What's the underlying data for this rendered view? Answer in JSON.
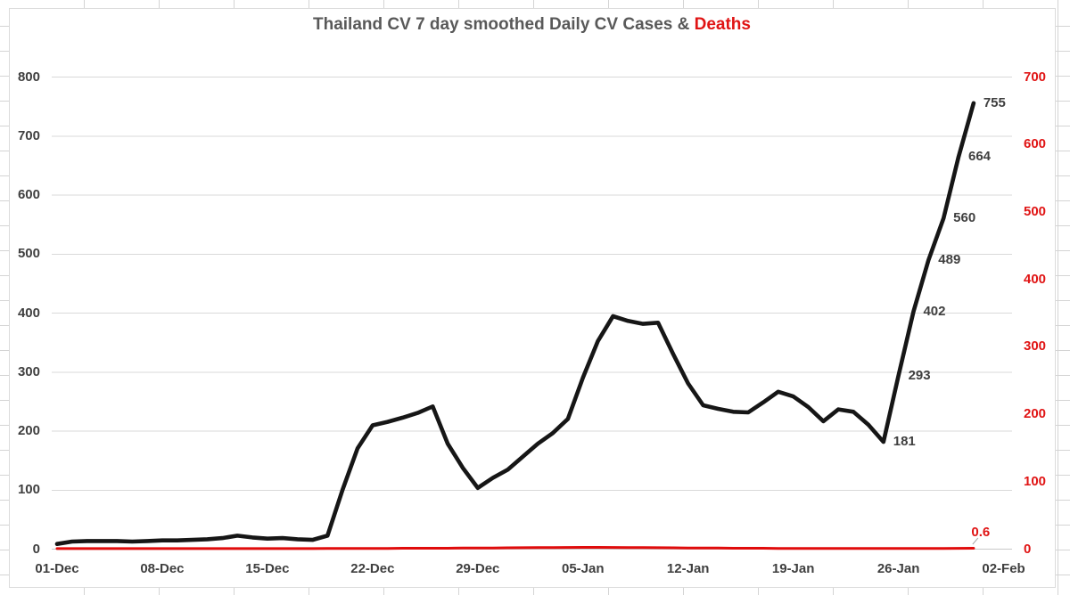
{
  "title": {
    "main": "Thailand CV 7 day smoothed Daily CV Cases & ",
    "highlight": "Deaths"
  },
  "chart_data": {
    "type": "line",
    "title": "Thailand CV 7 day smoothed Daily CV Cases & Deaths",
    "x_axis": {
      "tick_labels": [
        "01-Dec",
        "08-Dec",
        "15-Dec",
        "22-Dec",
        "29-Dec",
        "05-Jan",
        "12-Jan",
        "19-Jan",
        "26-Jan",
        "02-Feb"
      ],
      "points": "daily from 01-Dec to 31-Jan"
    },
    "left_axis": {
      "min": 0,
      "max": 800,
      "step": 100,
      "label_color": "#3f3f3f",
      "applies_to": "cases"
    },
    "right_axis": {
      "min": 0,
      "max": 700,
      "step": 100,
      "label_color": "#e01414",
      "applies_to": "deaths"
    },
    "grid": {
      "horizontal": true,
      "color": "#d9d9d9",
      "legend": "none"
    },
    "series": [
      {
        "name": "Daily CV Cases (7-day smoothed)",
        "axis": "left",
        "color": "#161616",
        "values": [
          8,
          12,
          13,
          13,
          13,
          12,
          13,
          14,
          14,
          15,
          16,
          18,
          22,
          19,
          17,
          18,
          16,
          15,
          22,
          100,
          170,
          209,
          215,
          222,
          230,
          241,
          178,
          137,
          103,
          120,
          134,
          156,
          178,
          196,
          220,
          290,
          352,
          394,
          386,
          381,
          383,
          330,
          280,
          243,
          237,
          232,
          231,
          248,
          266,
          258,
          240,
          216,
          236,
          232,
          210,
          181,
          293,
          402,
          489,
          560,
          664,
          755
        ]
      },
      {
        "name": "Daily CV Deaths (7-day smoothed)",
        "axis": "right",
        "color": "#e00c0c",
        "values": [
          0.1,
          0.1,
          0.1,
          0.1,
          0.1,
          0.1,
          0.1,
          0.1,
          0.1,
          0.1,
          0.1,
          0.1,
          0.1,
          0.1,
          0.1,
          0.1,
          0.1,
          0.1,
          0.2,
          0.3,
          0.3,
          0.4,
          0.4,
          0.6,
          0.6,
          0.7,
          0.7,
          0.9,
          1.0,
          1.1,
          1.3,
          1.4,
          1.6,
          1.7,
          1.9,
          2.0,
          2.0,
          1.9,
          1.7,
          1.6,
          1.4,
          1.3,
          1.1,
          1.0,
          0.9,
          0.7,
          0.6,
          0.6,
          0.4,
          0.4,
          0.3,
          0.3,
          0.3,
          0.3,
          0.3,
          0.3,
          0.3,
          0.4,
          0.4,
          0.4,
          0.5,
          0.6
        ]
      }
    ],
    "point_labels": [
      {
        "day_index": 55,
        "text": "181"
      },
      {
        "day_index": 56,
        "text": "293"
      },
      {
        "day_index": 57,
        "text": "402"
      },
      {
        "day_index": 58,
        "text": "489"
      },
      {
        "day_index": 59,
        "text": "560"
      },
      {
        "day_index": 60,
        "text": "664"
      },
      {
        "day_index": 61,
        "text": "755"
      }
    ],
    "deaths_end_label": "0.6"
  }
}
